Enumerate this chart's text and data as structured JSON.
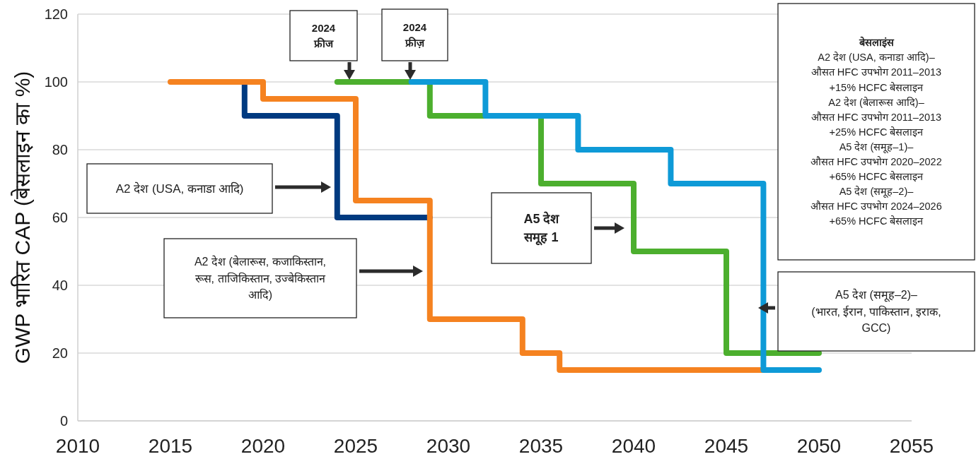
{
  "chart_data": {
    "type": "step",
    "ylabel": "GWP भारित CAP (बेसलाइन का %)",
    "xlim": [
      2010,
      2055
    ],
    "xticks": [
      2010,
      2015,
      2020,
      2025,
      2030,
      2035,
      2040,
      2045,
      2050,
      2055
    ],
    "ylim": [
      0,
      120
    ],
    "yticks": [
      0,
      20,
      40,
      60,
      80,
      100,
      120
    ],
    "grid": "y",
    "line_style": "solid",
    "marker": "none",
    "series": [
      {
        "color": "#003a80",
        "x": [
          2019,
          2019,
          2024,
          2029
        ],
        "values": [
          100,
          90,
          60,
          60
        ]
      },
      {
        "color": "#f58220",
        "x": [
          2015,
          2020,
          2025,
          2029,
          2034,
          2036,
          2047
        ],
        "values": [
          100,
          95,
          65,
          30,
          20,
          15,
          15
        ]
      },
      {
        "color": "#4caf2e",
        "x": [
          2024,
          2029,
          2035,
          2040,
          2045,
          2050
        ],
        "values": [
          100,
          90,
          70,
          50,
          20,
          20
        ]
      },
      {
        "color": "#0e9ad7",
        "x": [
          2028,
          2032,
          2037,
          2042,
          2047,
          2050
        ],
        "values": [
          100,
          90,
          80,
          70,
          15,
          15
        ]
      }
    ],
    "annotations": [
      "2024\nफ्रीज",
      "2024\nफ्रीज़",
      "A2 देश (USA, कनाडा आदि)",
      "A2 देश (बेलारूस, कजाकिस्तान,\nरूस, ताजिकिस्तान, उज्बेकिस्तान\nआदि)",
      "A5 देश\nसमूह 1",
      "A5 देश (समूह–2)–\n(भारत, ईरान, पाकिस्तान, इराक,\nGCC)",
      "बेसलाइंस\nA2 देश (USA, कनाडा आदि)–\nऔसत HFC उपभोग 2011–2013\n+15% HCFC बेसलाइन\nA2 देश (बेलारूस आदि)–\nऔसत HFC उपभोग 2011–2013\n+25% HCFC बेसलाइन\nA5 देश (समूह–1)–\nऔसत HFC उपभोग 2020–2022\n+65% HCFC बेसलाइन\nA5 देश (समूह–2)–\nऔसत HFC उपभोग 2024–2026\n+65% HCFC बेसलाइन"
    ]
  }
}
